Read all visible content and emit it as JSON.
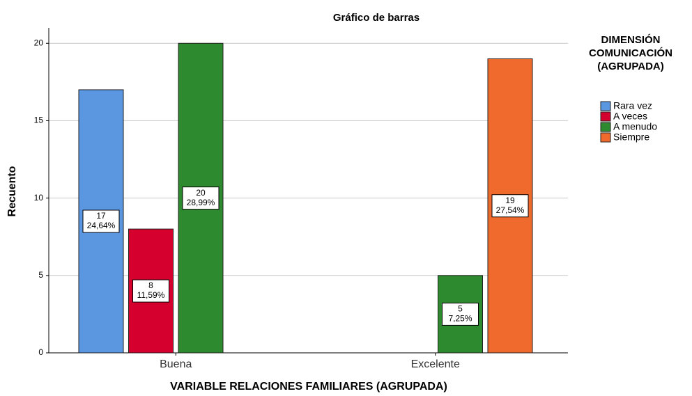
{
  "chart_data": {
    "type": "bar",
    "title": "Gráfico de barras",
    "x_label": "VARIABLE RELACIONES FAMILIARES (AGRUPADA)",
    "y_label": "Recuento",
    "legend_title": [
      "DIMENSIÓN",
      "COMUNICACIÓN",
      "(AGRUPADA)"
    ],
    "categories": [
      "Buena",
      "Excelente"
    ],
    "series": [
      {
        "name": "Rara vez",
        "color": "#5b97e0",
        "values": [
          17,
          null
        ],
        "percents": [
          24.64,
          null
        ],
        "percent_labels": [
          "24,64%",
          null
        ]
      },
      {
        "name": "A veces",
        "color": "#d5002e",
        "values": [
          8,
          null
        ],
        "percents": [
          11.59,
          null
        ],
        "percent_labels": [
          "11,59%",
          null
        ]
      },
      {
        "name": "A menudo",
        "color": "#2e8a2e",
        "values": [
          20,
          5
        ],
        "percents": [
          28.99,
          7.25
        ],
        "percent_labels": [
          "28,99%",
          "7,25%"
        ]
      },
      {
        "name": "Siempre",
        "color": "#f06a2e",
        "values": [
          null,
          19
        ],
        "percents": [
          null,
          27.54
        ],
        "percent_labels": [
          null,
          "27,54%"
        ]
      }
    ],
    "ylim": [
      0,
      21
    ],
    "yticks": [
      0,
      5,
      10,
      15,
      20
    ],
    "grid": true,
    "legend": "right"
  }
}
